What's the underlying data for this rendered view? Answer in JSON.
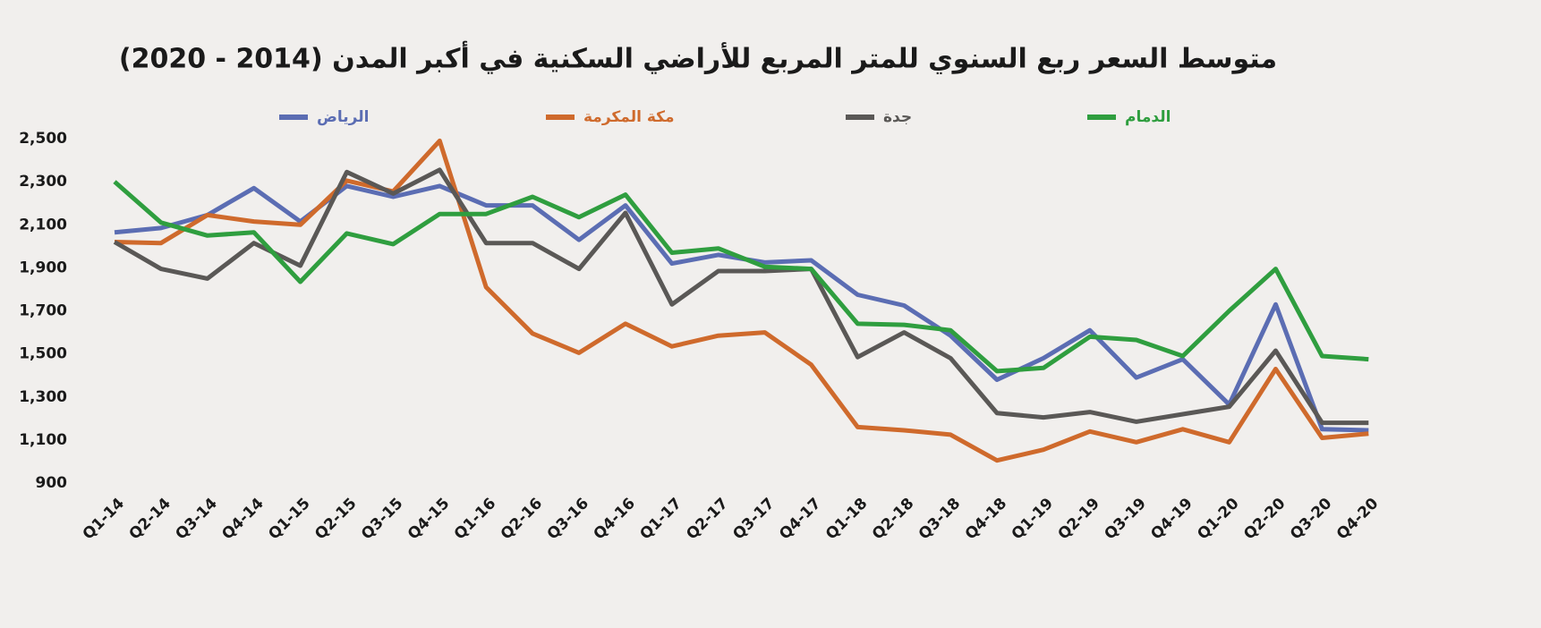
{
  "chart_data": {
    "type": "line",
    "title": "متوسط السعر ربع السنوي للمتر المربع للأراضي السكنية في أكبر المدن (2014 - 2020)",
    "categories": [
      "Q1-14",
      "Q2-14",
      "Q3-14",
      "Q4-14",
      "Q1-15",
      "Q2-15",
      "Q3-15",
      "Q4-15",
      "Q1-16",
      "Q2-16",
      "Q3-16",
      "Q4-16",
      "Q1-17",
      "Q2-17",
      "Q3-17",
      "Q4-17",
      "Q1-18",
      "Q2-18",
      "Q3-18",
      "Q4-18",
      "Q1-19",
      "Q2-19",
      "Q3-19",
      "Q4-19",
      "Q1-20",
      "Q2-20",
      "Q3-20",
      "Q4-20"
    ],
    "series": [
      {
        "name": "الرياض",
        "color": "#5b6db3",
        "values": [
          2065,
          2085,
          2145,
          2270,
          2115,
          2280,
          2230,
          2280,
          2190,
          2190,
          2030,
          2190,
          1920,
          1960,
          1925,
          1935,
          1775,
          1725,
          1585,
          1380,
          1480,
          1610,
          1390,
          1475,
          1265,
          1730,
          1150,
          1145
        ]
      },
      {
        "name": "مكة المكرمة",
        "color": "#cf6a2c",
        "values": [
          2020,
          2015,
          2145,
          2115,
          2100,
          2305,
          2255,
          2490,
          1810,
          1595,
          1505,
          1640,
          1535,
          1585,
          1600,
          1450,
          1160,
          1145,
          1125,
          1005,
          1055,
          1140,
          1090,
          1150,
          1090,
          1430,
          1110,
          1130
        ]
      },
      {
        "name": "جدة",
        "color": "#5a5856",
        "values": [
          2020,
          1895,
          1850,
          2015,
          1910,
          2345,
          2245,
          2355,
          2015,
          2015,
          1895,
          2155,
          1730,
          1885,
          1885,
          1895,
          1485,
          1600,
          1480,
          1225,
          1205,
          1230,
          1185,
          1220,
          1255,
          1515,
          1180,
          1180
        ]
      },
      {
        "name": "الدمام",
        "color": "#2f9e3f",
        "values": [
          2300,
          2110,
          2050,
          2065,
          1835,
          2060,
          2010,
          2150,
          2150,
          2230,
          2135,
          2240,
          1970,
          1990,
          1905,
          1895,
          1640,
          1635,
          1610,
          1420,
          1435,
          1580,
          1565,
          1490,
          1700,
          1895,
          1490,
          1475
        ]
      }
    ],
    "ylim": [
      900,
      2500
    ],
    "yticks": [
      900,
      {
        "value": 1100,
        "label": "1,100"
      },
      {
        "value": 1300,
        "label": "1,300"
      },
      {
        "value": 1500,
        "label": "1,500"
      },
      {
        "value": 1700,
        "label": "1,700"
      },
      {
        "value": 1900,
        "label": "1,900"
      },
      {
        "value": 2100,
        "label": "2,100"
      },
      {
        "value": 2300,
        "label": "2,300"
      },
      {
        "value": 2500,
        "label": "2,500"
      }
    ],
    "grid": false,
    "legend": "top"
  }
}
